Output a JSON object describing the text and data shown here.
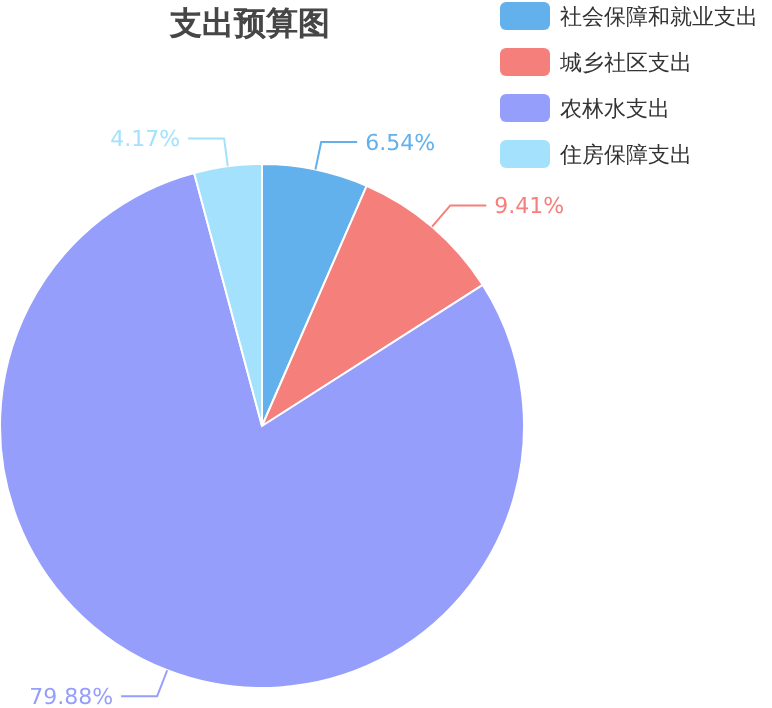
{
  "chart_data": {
    "type": "pie",
    "title": "支出预算图",
    "categories": [
      "社会保障和就业支出",
      "城乡社区支出",
      "农林水支出",
      "住房保障支出"
    ],
    "values": [
      6.54,
      9.41,
      79.88,
      4.17
    ],
    "value_labels": [
      "6.54%",
      "9.41%",
      "79.88%",
      "4.17%"
    ],
    "colors": [
      "#62b0ec",
      "#f5807b",
      "#969efc",
      "#a3e1fc"
    ],
    "legend": "top right"
  }
}
